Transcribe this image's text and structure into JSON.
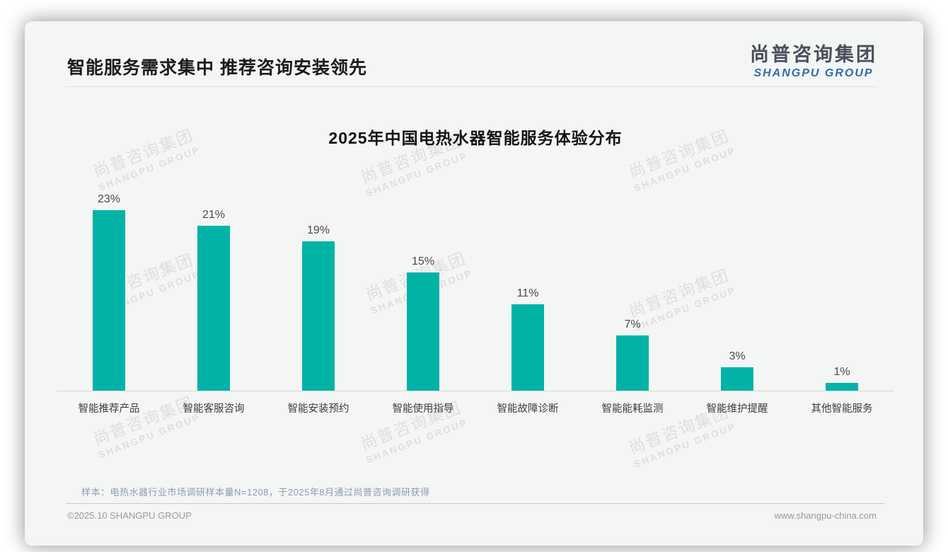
{
  "page": {
    "title": "智能服务需求集中 推荐咨询安装领先",
    "logo_cn": "尚普咨询集团",
    "logo_en": "SHANGPU GROUP",
    "watermark_cn": "尚普咨询集团",
    "watermark_en": "SHANGPU GROUP",
    "footnote": "样本：电热水器行业市场调研样本量N=1208，于2025年8月通过尚普咨询调研获得",
    "footer_left": "©2025.10 SHANGPU GROUP",
    "footer_right": "www.shangpu-china.com"
  },
  "colors": {
    "bar": "#00b3a6",
    "logo_blue": "#2f6bad",
    "card_background": "#f4f5f5"
  },
  "chart_data": {
    "type": "bar",
    "title": "2025年中国电热水器智能服务体验分布",
    "categories": [
      "智能推荐产品",
      "智能客服咨询",
      "智能安装预约",
      "智能使用指导",
      "智能故障诊断",
      "智能能耗监测",
      "智能维护提醒",
      "其他智能服务"
    ],
    "values": [
      23,
      21,
      19,
      15,
      11,
      7,
      3,
      1
    ],
    "labels": [
      "23%",
      "21%",
      "19%",
      "15%",
      "11%",
      "7%",
      "3%",
      "1%"
    ],
    "unit": "%",
    "xlabel": "",
    "ylabel": "",
    "ylim": [
      0,
      25
    ],
    "grid": false,
    "legend": false,
    "bar_color": "#00b3a6"
  }
}
